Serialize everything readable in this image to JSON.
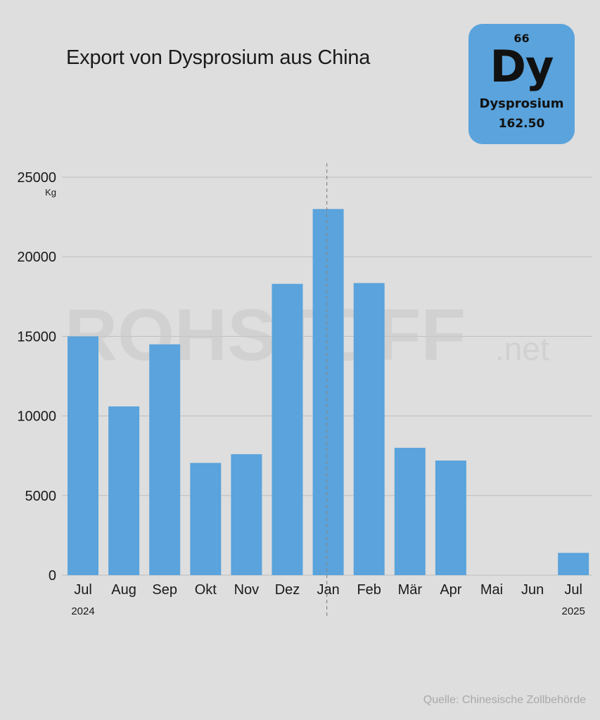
{
  "element_card": {
    "number": "66",
    "symbol": "Dy",
    "name": "Dysprosium",
    "mass": "162.50",
    "color": "#5aa3dc"
  },
  "watermark": {
    "main": "ROHSTOFF",
    "suffix": ".net"
  },
  "source": "Quelle: Chinesische Zollbehörde",
  "chart_data": {
    "type": "bar",
    "title": "Export von Dysprosium aus China",
    "ylabel": "Kg",
    "xlabel": "",
    "categories": [
      "Jul",
      "Aug",
      "Sep",
      "Okt",
      "Nov",
      "Dez",
      "Jan",
      "Feb",
      "Mär",
      "Apr",
      "Mai",
      "Jun",
      "Jul"
    ],
    "values": [
      15000,
      10600,
      14500,
      7050,
      7600,
      18300,
      23000,
      18350,
      8000,
      7200,
      0,
      0,
      1400
    ],
    "year_labels": [
      {
        "category_index": 0,
        "label": "2024"
      },
      {
        "category_index": 12,
        "label": "2025"
      }
    ],
    "divider_after_category": "Jan",
    "ylim": [
      0,
      25000
    ],
    "yticks": [
      0,
      5000,
      10000,
      15000,
      20000,
      25000
    ],
    "grid": true,
    "legend": "none",
    "bar_color": "#5aa3dc",
    "grid_color": "#bdbdbd"
  }
}
